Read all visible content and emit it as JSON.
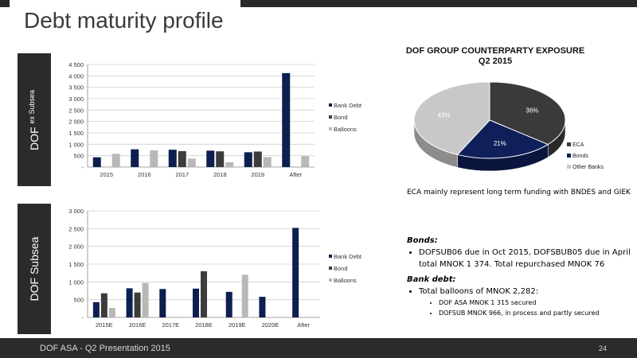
{
  "page": {
    "title": "Debt maturity profile",
    "footer_left": "DOF ASA    - Q2 Presentation 2015",
    "footer_page": "24"
  },
  "side_labels": {
    "top_main": "DOF",
    "top_sub": "ex Subsea",
    "bottom": "DOF Subsea"
  },
  "chart_data": [
    {
      "type": "bar",
      "categories": [
        "2015",
        "2016",
        "2017",
        "2018",
        "2019",
        "After"
      ],
      "series": [
        {
          "name": "Bank Debt",
          "color": "#0d1f4f",
          "values": [
            430,
            780,
            760,
            720,
            650,
            4120
          ]
        },
        {
          "name": "Bond",
          "color": "#3c3c3c",
          "values": [
            0,
            0,
            700,
            690,
            680,
            0
          ]
        },
        {
          "name": "Balloons",
          "color": "#b8b8b8",
          "values": [
            580,
            730,
            370,
            210,
            440,
            480
          ]
        }
      ],
      "yticks": [
        "-",
        "500",
        "1 000",
        "1 500",
        "2 000",
        "2 500",
        "3 000",
        "3 500",
        "4 000",
        "4 500"
      ],
      "ylim": [
        0,
        4500
      ]
    },
    {
      "type": "bar",
      "categories": [
        "2015E",
        "2016E",
        "2017E",
        "2018E",
        "2019E",
        "2020E",
        "After"
      ],
      "series": [
        {
          "name": "Bank Debt",
          "color": "#0d1f4f",
          "values": [
            430,
            820,
            800,
            810,
            720,
            580,
            2520
          ]
        },
        {
          "name": "Bond",
          "color": "#3c3c3c",
          "values": [
            680,
            700,
            0,
            1300,
            0,
            0,
            0
          ]
        },
        {
          "name": "Balloons",
          "color": "#b8b8b8",
          "values": [
            270,
            970,
            0,
            0,
            1200,
            0,
            0
          ]
        }
      ],
      "yticks": [
        "-",
        "500",
        "1 000",
        "1 500",
        "2 000",
        "2 500",
        "3 000"
      ],
      "ylim": [
        0,
        3000
      ]
    },
    {
      "type": "pie",
      "title": "DOF GROUP COUNTERPARTY EXPOSURE Q2 2015",
      "slices": [
        {
          "name": "ECA",
          "value": 36,
          "label": "36%",
          "color": "#3a3a3a"
        },
        {
          "name": "Bonds",
          "value": 21,
          "label": "21%",
          "color": "#0f1f5a"
        },
        {
          "name": "Other Banks",
          "value": 43,
          "label": "43%",
          "color": "#c8c8c8"
        }
      ]
    }
  ],
  "notes": {
    "eca": "ECA mainly represent long term funding with BNDES and GIEK",
    "bonds_heading": "Bonds:",
    "bonds_item": "DOFSUB06 due in Oct 2015, DOFSBUB05 due in April total MNOK 1 374. Total repurchased MNOK 76",
    "bank_heading": "Bank debt:",
    "bank_item": "Total balloons of MNOK 2,282:",
    "bank_sub1": "DOF ASA MNOK 1 315 secured",
    "bank_sub2": "DOFSUB MNOK 966, in process and partly secured"
  }
}
